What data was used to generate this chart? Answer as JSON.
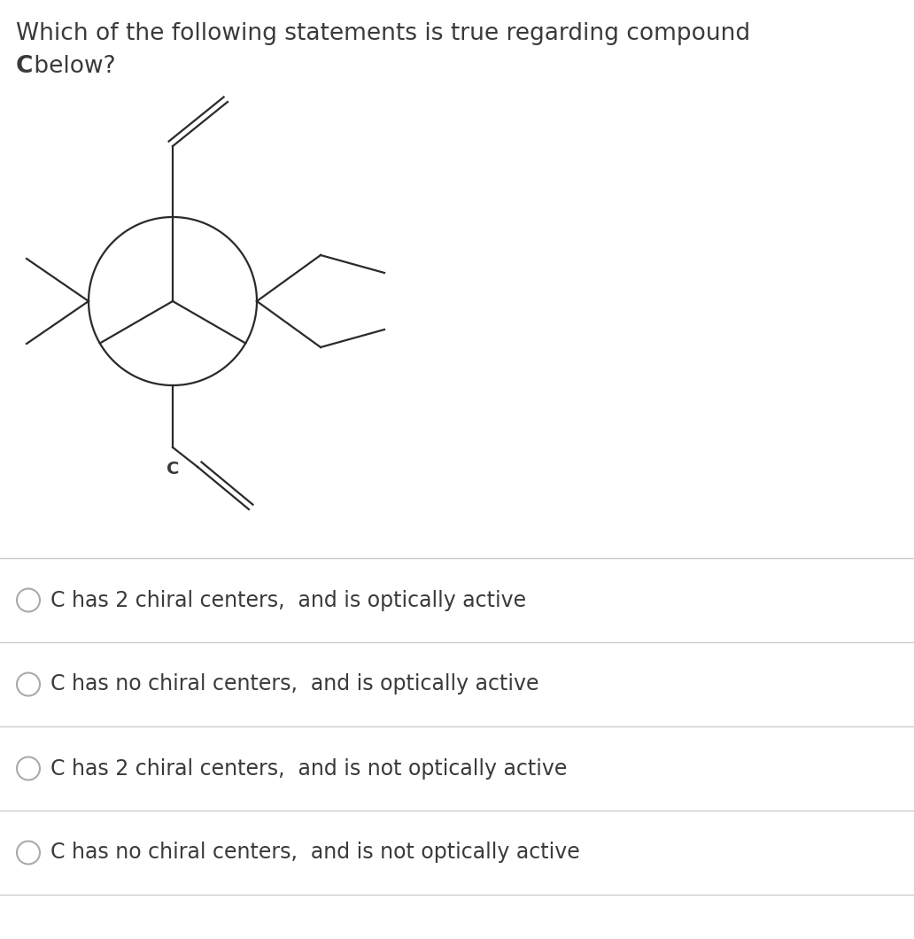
{
  "background_color": "#ffffff",
  "title_line1": "Which of the following statements is true regarding compound",
  "title_line2_bold": "C",
  "title_line2_normal": " below?",
  "title_fontsize": 19,
  "title_color": "#3a3a3a",
  "label_C": "C",
  "label_C_fontsize": 14,
  "options": [
    "C has 2 chiral centers,  and is optically active",
    "C has no chiral centers,  and is optically active",
    "C has 2 chiral centers,  and is not optically active",
    "C has no chiral centers,  and is not optically active"
  ],
  "options_fontsize": 17,
  "options_color": "#3a3a3a",
  "line_color": "#2a2a2a",
  "line_width": 1.6
}
